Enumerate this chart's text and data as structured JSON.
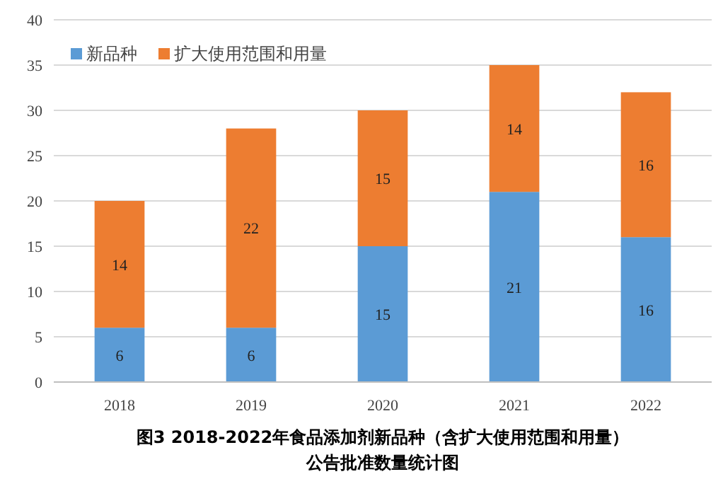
{
  "chart_data": {
    "type": "bar",
    "stacked": true,
    "title": "图3 2018-2022年食品添加剂新品种（含扩大使用范围和用量）",
    "subtitle": "公告批准数量统计图",
    "categories": [
      "2018",
      "2019",
      "2020",
      "2021",
      "2022"
    ],
    "series": [
      {
        "name": "新品种",
        "color": "#5b9bd5",
        "values": [
          6,
          6,
          15,
          21,
          16
        ]
      },
      {
        "name": "扩大使用范围和用量",
        "color": "#ed7d31",
        "values": [
          14,
          22,
          15,
          14,
          16
        ]
      }
    ],
    "ylim": [
      0,
      40
    ],
    "yticks": [
      0,
      5,
      10,
      15,
      20,
      25,
      30,
      35,
      40
    ],
    "grid": "y",
    "legend": "top left",
    "data_labels": true
  }
}
